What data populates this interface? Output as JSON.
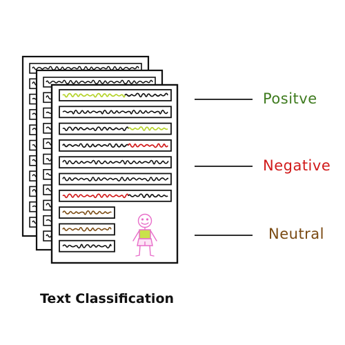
{
  "caption": "Text Classification",
  "categories": [
    {
      "key": "positive",
      "label": "Positve",
      "color": "#3f7b1f",
      "scribble_color": "#b5d32a"
    },
    {
      "key": "negative",
      "label": "Negative",
      "color": "#d11a1a",
      "scribble_color": "#d11a1a"
    },
    {
      "key": "neutral",
      "label": "Neutral",
      "color": "#7a4a12",
      "scribble_color": "#7a4a12"
    }
  ],
  "colors": {
    "ink": "#111111",
    "figure": "#e86dc9",
    "figure_body": "#c9e24a"
  },
  "document_stack": {
    "page_count": 3
  },
  "front_page_rows": [
    {
      "sentiment": "positive"
    },
    {
      "sentiment": "none"
    },
    {
      "sentiment": "positive"
    },
    {
      "sentiment": "negative"
    },
    {
      "sentiment": "none"
    },
    {
      "sentiment": "none"
    },
    {
      "sentiment": "negative"
    },
    {
      "sentiment": "neutral"
    },
    {
      "sentiment": "neutral"
    },
    {
      "sentiment": "none"
    }
  ],
  "icons": [
    "document-stack-icon",
    "stick-figure-icon"
  ]
}
